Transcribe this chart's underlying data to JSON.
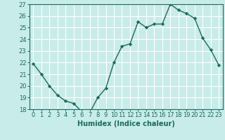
{
  "xlabel": "Humidex (Indice chaleur)",
  "x": [
    0,
    1,
    2,
    3,
    4,
    5,
    6,
    7,
    8,
    9,
    10,
    11,
    12,
    13,
    14,
    15,
    16,
    17,
    18,
    19,
    20,
    21,
    22,
    23
  ],
  "y": [
    21.9,
    21.0,
    20.0,
    19.2,
    18.7,
    18.5,
    17.8,
    17.7,
    19.0,
    19.8,
    22.0,
    23.4,
    23.6,
    25.5,
    25.0,
    25.3,
    25.3,
    27.0,
    26.5,
    26.2,
    25.8,
    24.1,
    23.1,
    21.8
  ],
  "line_color": "#1a6b5a",
  "bg_color": "#c8ece9",
  "grid_color": "#ffffff",
  "grid_minor_color": "#d9f0ee",
  "ylim": [
    18,
    27
  ],
  "yticks": [
    18,
    19,
    20,
    21,
    22,
    23,
    24,
    25,
    26,
    27
  ],
  "xlim": [
    -0.5,
    23.5
  ],
  "marker": "D",
  "markersize": 2.2,
  "linewidth": 1.0,
  "tick_fontsize": 6.0,
  "xlabel_fontsize": 7.0
}
